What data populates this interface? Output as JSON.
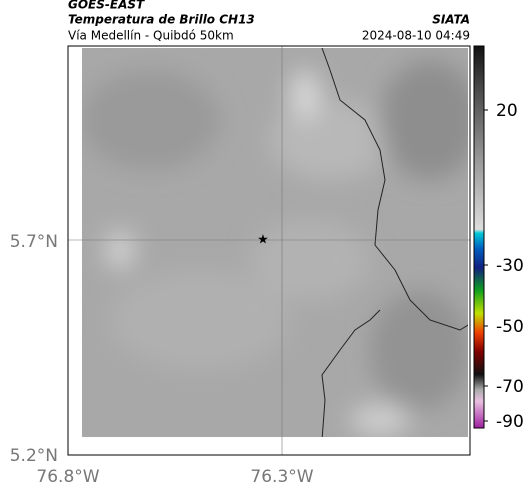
{
  "header": {
    "title": "GOES-EAST",
    "subtitle": "Temperatura de Brillo CH13",
    "location": "Vía Medellín - Quibdó 50km",
    "source": "SIATA",
    "datetime": "2024-08-10 04:49"
  },
  "map": {
    "lat_labels": [
      "5.7°N",
      "5.2°N"
    ],
    "lon_labels": [
      "76.8°W",
      "76.3°W"
    ]
  },
  "colorbar": {
    "tick_labels": [
      "20",
      "-30",
      "-50",
      "-70",
      "-90"
    ]
  }
}
